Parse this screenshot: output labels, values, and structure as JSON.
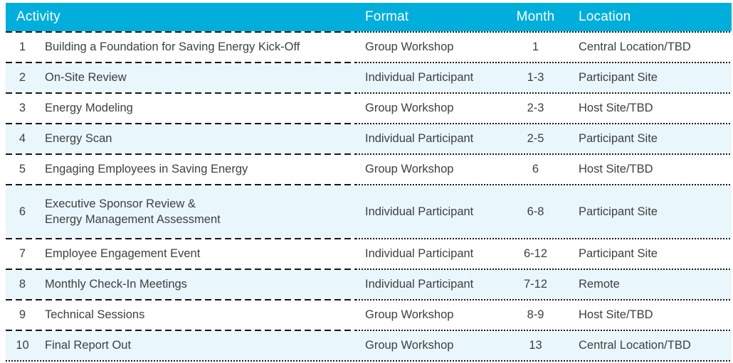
{
  "table": {
    "columns": {
      "activity": "Activity",
      "format": "Format",
      "month": "Month",
      "location": "Location"
    },
    "rows": [
      {
        "num": "1",
        "activity": "Building a Foundation for Saving Energy Kick-Off",
        "format": "Group Workshop",
        "month": "1",
        "location": "Central Location/TBD"
      },
      {
        "num": "2",
        "activity": "On-Site Review",
        "format": "Individual Participant",
        "month": "1-3",
        "location": "Participant Site"
      },
      {
        "num": "3",
        "activity": "Energy Modeling",
        "format": "Group Workshop",
        "month": "2-3",
        "location": "Host Site/TBD"
      },
      {
        "num": "4",
        "activity": "Energy Scan",
        "format": "Individual Participant",
        "month": "2-5",
        "location": "Participant Site"
      },
      {
        "num": "5",
        "activity": "Engaging Employees in Saving Energy",
        "format": "Group Workshop",
        "month": "6",
        "location": "Host Site/TBD"
      },
      {
        "num": "6",
        "activity": "Executive Sponsor Review &\nEnergy Management Assessment",
        "format": "Individual Participant",
        "month": "6-8",
        "location": "Participant Site"
      },
      {
        "num": "7",
        "activity": "Employee Engagement Event",
        "format": "Individual Participant",
        "month": "6-12",
        "location": "Participant Site"
      },
      {
        "num": "8",
        "activity": "Monthly Check-In Meetings",
        "format": "Individual Participant",
        "month": "7-12",
        "location": "Remote"
      },
      {
        "num": "9",
        "activity": "Technical Sessions",
        "format": "Group Workshop",
        "month": "8-9",
        "location": "Host Site/TBD"
      },
      {
        "num": "10",
        "activity": "Final Report Out",
        "format": "Group Workshop",
        "month": "13",
        "location": "Central Location/TBD"
      }
    ],
    "colors": {
      "header_bg": "#00AEDB",
      "alt_row_bg": "#E9F6FC",
      "body_text": "#3F4040",
      "header_text": "#FFFFFF",
      "line": "#161616"
    }
  }
}
